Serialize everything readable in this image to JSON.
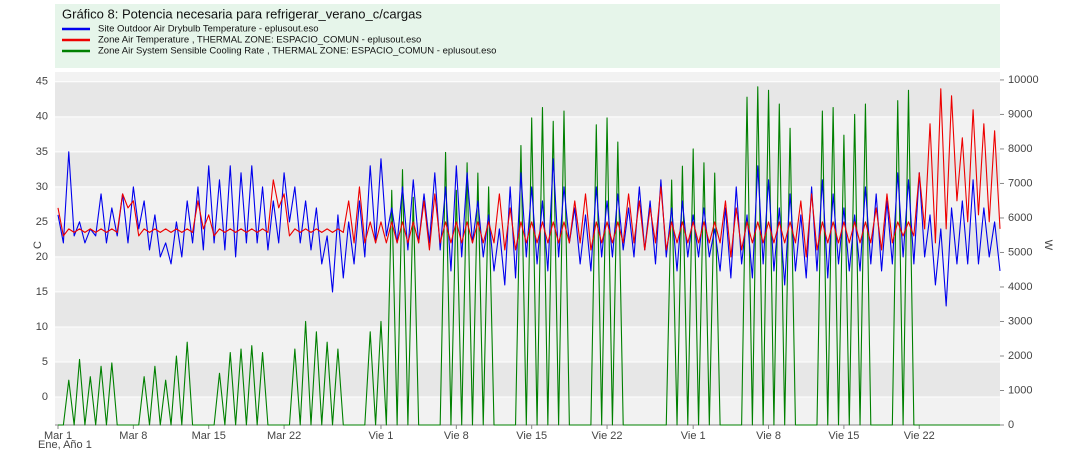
{
  "chart_data": {
    "type": "line",
    "title": "Gráfico 8: Potencia necesaria para refrigerar_verano_c/cargas",
    "ylabel": "C",
    "y2label": "W",
    "xlabel": "Ene, Año 1",
    "ylim": [
      -4,
      46.4
    ],
    "yticks": [
      0,
      5,
      10,
      15,
      20,
      25,
      30,
      35,
      40,
      45
    ],
    "y2lim": [
      0,
      10230
    ],
    "y2ticks": [
      0,
      1000,
      2000,
      3000,
      4000,
      5000,
      6000,
      7000,
      8000,
      9000,
      10000
    ],
    "grid": true,
    "categories": [
      "Mar 1",
      null,
      null,
      null,
      null,
      null,
      null,
      null,
      null,
      null,
      null,
      null,
      null,
      null,
      "Mar 8",
      null,
      null,
      null,
      null,
      null,
      null,
      null,
      null,
      null,
      null,
      null,
      null,
      null,
      "Mar 15",
      null,
      null,
      null,
      null,
      null,
      null,
      null,
      null,
      null,
      null,
      null,
      null,
      null,
      "Mar 22",
      null,
      null,
      null,
      null,
      null,
      null,
      null,
      null,
      null,
      null,
      null,
      null,
      null,
      null,
      null,
      null,
      null,
      "Vie 1",
      null,
      null,
      null,
      null,
      null,
      null,
      null,
      null,
      null,
      null,
      null,
      null,
      null,
      "Vie 8",
      null,
      null,
      null,
      null,
      null,
      null,
      null,
      null,
      null,
      null,
      null,
      null,
      null,
      "Vie 15",
      null,
      null,
      null,
      null,
      null,
      null,
      null,
      null,
      null,
      null,
      null,
      null,
      null,
      "Vie 22",
      null,
      null,
      null,
      null,
      null,
      null,
      null,
      null,
      null,
      null,
      null,
      null,
      null,
      null,
      null,
      "Vie 1",
      null,
      null,
      null,
      null,
      null,
      null,
      null,
      null,
      null,
      null,
      null,
      null,
      null,
      "Vie 8",
      null,
      null,
      null,
      null,
      null,
      null,
      null,
      null,
      null,
      null,
      null,
      null,
      null,
      "Vie 15",
      null,
      null,
      null,
      null,
      null,
      null,
      null,
      null,
      null,
      null,
      null,
      null,
      null,
      "Vie 22",
      null,
      null,
      null,
      null,
      null,
      null,
      null,
      null,
      null,
      null,
      null,
      null,
      null,
      null,
      null
    ],
    "series": [
      {
        "name": "Site Outdoor Air Drybulb Temperature  - eplusout.eso",
        "color": "#0000ee",
        "axis": "y",
        "values": [
          26,
          22,
          35,
          23,
          25,
          22,
          24,
          23,
          29,
          22,
          27,
          23,
          29,
          22,
          30,
          24,
          28,
          21,
          26,
          20,
          22,
          19,
          25,
          20,
          28,
          22,
          30,
          21,
          33,
          22,
          31,
          21,
          33,
          20,
          32,
          22,
          33,
          22,
          30,
          21,
          28,
          22,
          32,
          25,
          30,
          22,
          28,
          21,
          27,
          19,
          23,
          15,
          26,
          17,
          25,
          19,
          28,
          20,
          33,
          22,
          34,
          23,
          27,
          22,
          30,
          21,
          31,
          22,
          29,
          22,
          32,
          21,
          30,
          18,
          33,
          20,
          32,
          22,
          28,
          20,
          26,
          18,
          24,
          16,
          30,
          17,
          32,
          20,
          30,
          19,
          28,
          18,
          34,
          20,
          30,
          22,
          27,
          19,
          26,
          18,
          30,
          20,
          28,
          20,
          29,
          21,
          27,
          20,
          30,
          21,
          28,
          19,
          31,
          20,
          27,
          18,
          28,
          20,
          26,
          20,
          27,
          20,
          24,
          18,
          27,
          17,
          30,
          19,
          26,
          17,
          33,
          19,
          31,
          18,
          27,
          16,
          29,
          18,
          26,
          17,
          30,
          18,
          31,
          17,
          29,
          19,
          27,
          18,
          26,
          18,
          30,
          19,
          29,
          18,
          28,
          19,
          32,
          20,
          31,
          19,
          32,
          20,
          26,
          16,
          24,
          13,
          27,
          19,
          28,
          19,
          31,
          19,
          27,
          20,
          25,
          18
        ]
      },
      {
        "name": "Zone Air Temperature , THERMAL ZONE: ESPACIO_COMUN - eplusout.eso",
        "color": "#ee0000",
        "axis": "y",
        "values": [
          27,
          23,
          24,
          23.5,
          24,
          23.5,
          24,
          23.5,
          24,
          23.5,
          24,
          23.5,
          29,
          27,
          28,
          23,
          24,
          23.5,
          24,
          23.5,
          24,
          23.5,
          24,
          23.5,
          24,
          23.5,
          28,
          24,
          26,
          23,
          24,
          23.5,
          24,
          23.5,
          24,
          23.5,
          24,
          23.5,
          24,
          23.5,
          31,
          27,
          29,
          23,
          24,
          23.5,
          24,
          23.5,
          24,
          23.5,
          24,
          23.5,
          24,
          23.5,
          28,
          22,
          30,
          22,
          25,
          22,
          25,
          22,
          25,
          22,
          25,
          22,
          25,
          22,
          28,
          21,
          29,
          22,
          25,
          22,
          25,
          22,
          25,
          22,
          25,
          22,
          25,
          22,
          29,
          21,
          27,
          21,
          25,
          22,
          25,
          22,
          25,
          22,
          25,
          22,
          25,
          22,
          28,
          22,
          29,
          21,
          25,
          22,
          25,
          22,
          25,
          22,
          29,
          22,
          28,
          21,
          27,
          22,
          30,
          21,
          25,
          22,
          25,
          22,
          25,
          22,
          25,
          22,
          25,
          22,
          28,
          20,
          27,
          21,
          25,
          22,
          25,
          22,
          25,
          22,
          25,
          22,
          25,
          22,
          28,
          20,
          29,
          21,
          25,
          22,
          25,
          22,
          25,
          22,
          25,
          22,
          25,
          22,
          27,
          21,
          29,
          22,
          25,
          23,
          25,
          23,
          32,
          24,
          39,
          22,
          44,
          24,
          43,
          28,
          37,
          25,
          41,
          26,
          39,
          25,
          38,
          24
        ]
      },
      {
        "name": "Zone Air System Sensible Cooling Rate , THERMAL ZONE: ESPACIO_COMUN - eplusout.eso",
        "color": "#008000",
        "axis": "y2",
        "values": [
          0,
          0,
          1300,
          0,
          1900,
          0,
          1400,
          0,
          1700,
          0,
          1800,
          0,
          0,
          0,
          0,
          0,
          1400,
          0,
          1700,
          0,
          1300,
          0,
          2000,
          0,
          2400,
          0,
          0,
          0,
          0,
          0,
          1500,
          0,
          2100,
          0,
          2200,
          0,
          2300,
          0,
          2100,
          0,
          0,
          0,
          0,
          0,
          2200,
          0,
          3000,
          0,
          2700,
          0,
          2400,
          0,
          2200,
          0,
          0,
          0,
          0,
          0,
          2700,
          0,
          3000,
          0,
          6800,
          0,
          7400,
          0,
          6600,
          0,
          0,
          0,
          0,
          0,
          7900,
          0,
          6800,
          0,
          7600,
          0,
          7300,
          0,
          6900,
          0,
          0,
          0,
          0,
          0,
          8100,
          0,
          8900,
          0,
          9200,
          0,
          8800,
          0,
          9100,
          0,
          0,
          0,
          0,
          0,
          8700,
          0,
          8900,
          0,
          8200,
          0,
          0,
          0,
          0,
          0,
          0,
          0,
          0,
          0,
          7100,
          0,
          7500,
          0,
          8000,
          0,
          7600,
          0,
          7300,
          0,
          0,
          0,
          0,
          0,
          9500,
          0,
          9800,
          0,
          9700,
          0,
          9300,
          0,
          8600,
          0,
          0,
          0,
          0,
          0,
          9100,
          0,
          9200,
          0,
          8400,
          0,
          9000,
          0,
          9300,
          0,
          0,
          0,
          0,
          0,
          9400,
          0,
          9700,
          0,
          0,
          0,
          0,
          0,
          0,
          0,
          0,
          0,
          0,
          0,
          0,
          0,
          0,
          0,
          0,
          0
        ]
      }
    ]
  }
}
